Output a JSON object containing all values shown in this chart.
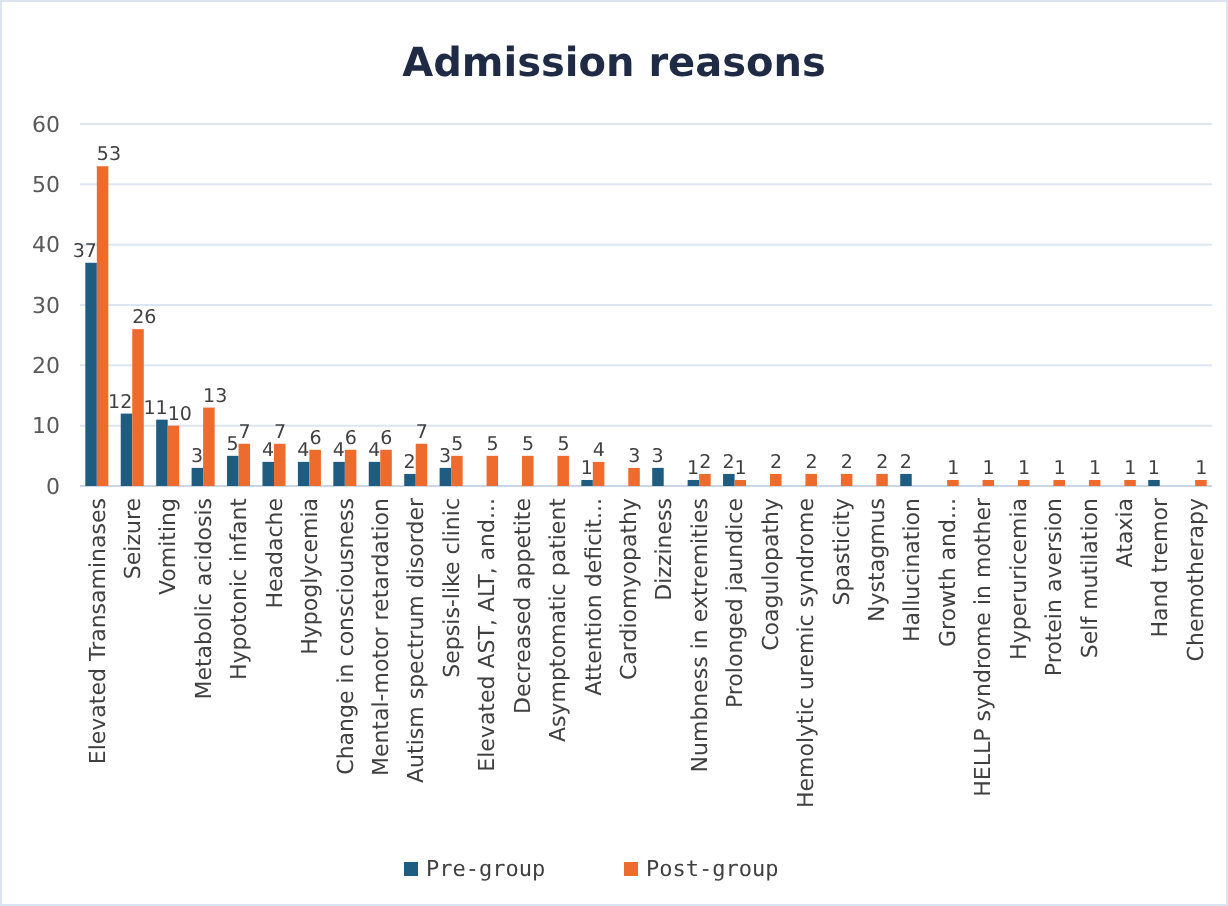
{
  "chart_data": {
    "type": "bar",
    "title": "Admission reasons",
    "categories": [
      "Elevated Transaminases",
      "Seizure",
      "Vomiting",
      "Metabolic acidosis",
      "Hypotonic infant",
      "Headache",
      "Hypoglycemia",
      "Change in consciousness",
      "Mental-motor retardation",
      "Autism spectrum disorder",
      "Sepsis-like clinic",
      "Elevated AST, ALT, and...",
      "Decreased appetite",
      "Asymptomatic patient",
      "Attention deficit...",
      "Cardiomyopathy",
      "Dizziness",
      "Numbness in extremities",
      "Prolonged jaundice",
      "Coagulopathy",
      "Hemolytic uremic syndrome",
      "Spasticity",
      "Nystagmus",
      "Hallucination",
      "Growth and...",
      "HELLP syndrome in mother",
      "Hyperuricemia",
      "Protein aversion",
      "Self mutilation",
      "Ataxia",
      "Hand tremor",
      "Chemotherapy"
    ],
    "series": [
      {
        "name": "Pre-group",
        "color": "#1f5c82",
        "values": [
          37,
          12,
          11,
          3,
          5,
          4,
          4,
          4,
          4,
          2,
          3,
          null,
          null,
          null,
          1,
          null,
          3,
          1,
          2,
          null,
          null,
          null,
          null,
          2,
          null,
          null,
          null,
          null,
          null,
          null,
          1,
          null
        ]
      },
      {
        "name": "Post-group",
        "color": "#ed6b2d",
        "values": [
          53,
          26,
          10,
          13,
          7,
          7,
          6,
          6,
          6,
          7,
          5,
          5,
          5,
          5,
          4,
          3,
          null,
          2,
          1,
          2,
          2,
          2,
          2,
          null,
          1,
          1,
          1,
          1,
          1,
          1,
          null,
          1
        ]
      }
    ],
    "ylim": [
      0,
      60
    ],
    "yticks": [
      0,
      10,
      20,
      30,
      40,
      50,
      60
    ],
    "grid": "y",
    "data_labels": true,
    "legend": "bottom"
  }
}
